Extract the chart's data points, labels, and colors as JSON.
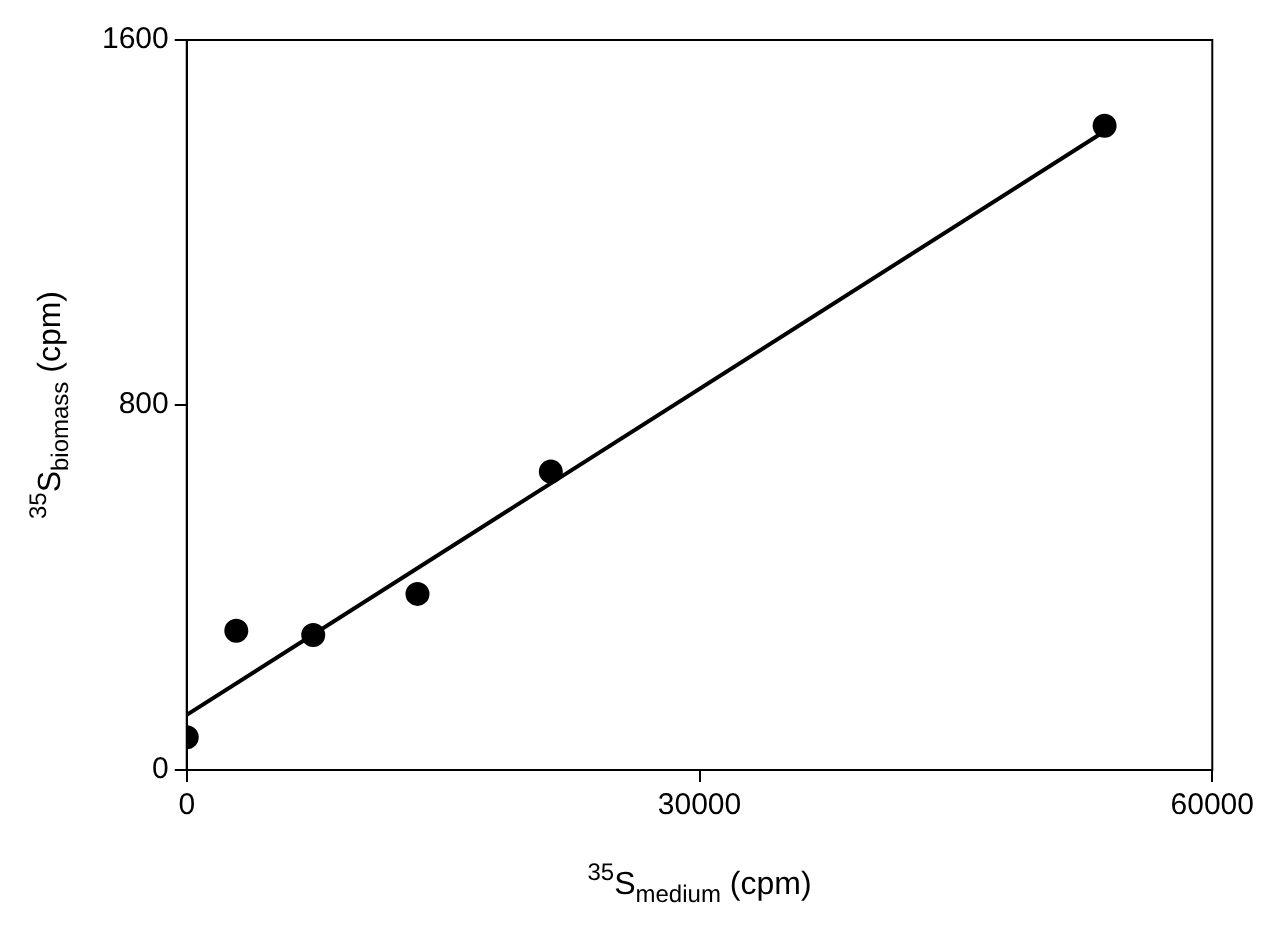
{
  "chart_data": {
    "type": "scatter",
    "xlabel": "$^{35}$S$_{medium}$ (cpm)",
    "ylabel": "$^{35}$S$_{biomass}$ (cpm)",
    "x": [
      0,
      2900,
      7400,
      13500,
      21300,
      53700
    ],
    "series": [
      {
        "type": "scatter",
        "color": "#000000",
        "marker": "circle",
        "values": [
          72,
          305,
          296,
          386,
          654,
          1412
        ]
      },
      {
        "type": "line",
        "color": "#000000",
        "marker": "none",
        "x": [
          0,
          53700
        ],
        "values": [
          121,
          1400
        ]
      }
    ],
    "xlim": [
      0,
      60000
    ],
    "xticks": [
      0,
      30000,
      60000
    ],
    "ylim": [
      0,
      1600
    ],
    "yticks": [
      0,
      800,
      1600
    ],
    "grid": false,
    "legend": false
  }
}
